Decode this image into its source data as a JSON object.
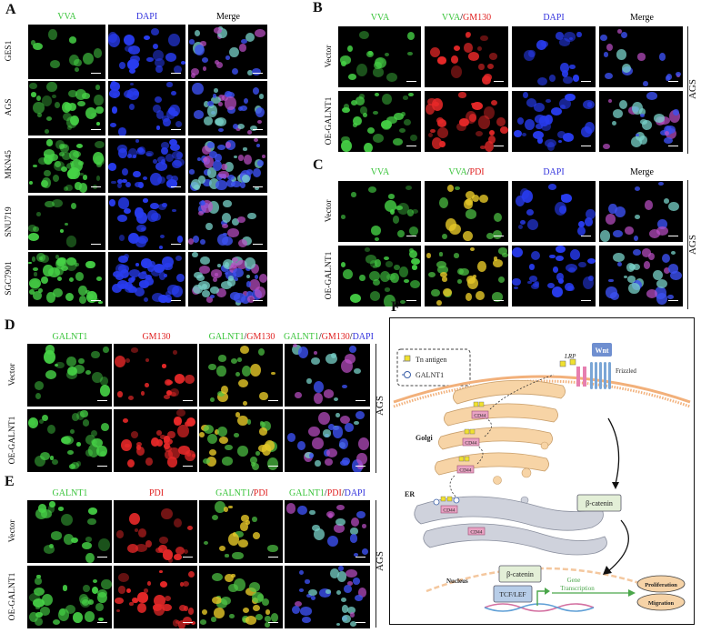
{
  "panels": {
    "A": {
      "letter": "A",
      "columns": [
        "VVA",
        "DAPI",
        "Merge"
      ],
      "rows": [
        "GES1",
        "AGS",
        "MKN45",
        "SNU719",
        "SGC7901"
      ]
    },
    "B": {
      "letter": "B",
      "columns": [
        "VVA",
        "VVA/GM130",
        "DAPI",
        "Merge"
      ],
      "col2_part1": "VVA",
      "col2_sep": "/",
      "col2_part2": "GM130",
      "rows": [
        "Vector",
        "OE-GALNT1"
      ],
      "side_label": "AGS"
    },
    "C": {
      "letter": "C",
      "columns": [
        "VVA",
        "VVA/PDI",
        "DAPI",
        "Merge"
      ],
      "col2_part1": "VVA",
      "col2_sep": "/",
      "col2_part2": "PDI",
      "rows": [
        "Vector",
        "OE-GALNT1"
      ],
      "side_label": "AGS"
    },
    "D": {
      "letter": "D",
      "col1": "GALNT1",
      "col2": "GM130",
      "col3_part1": "GALNT1",
      "col3_part2": "GM130",
      "col4_part1": "GALNT1",
      "col4_part2": "GM130",
      "col4_part3": "DAPI",
      "sep": "/",
      "rows": [
        "Vector",
        "OE-GALNT1"
      ],
      "side_label": "AGS"
    },
    "E": {
      "letter": "E",
      "col1": "GALNT1",
      "col2": "PDI",
      "col3_part1": "GALNT1",
      "col3_part2": "PDI",
      "col4_part1": "GALNT1",
      "col4_part2": "PDI",
      "col4_part3": "DAPI",
      "sep": "/",
      "rows": [
        "Vector",
        "OE-GALNT1"
      ],
      "side_label": "AGS"
    },
    "F": {
      "letter": "F",
      "legend_tn": "Tn antigen",
      "legend_galnt1": "GALNT1",
      "lrp": "LRP",
      "wnt": "Wnt",
      "frizzled": "Frizzled",
      "golgi": "Golgi",
      "er": "ER",
      "cd44": "CD44",
      "beta_catenin": "β-catenin",
      "nucleus": "Nucleus",
      "tcf_lef": "TCF/LEF",
      "gene_line1": "Gene",
      "gene_line2": "Transcription",
      "proliferation": "Proliferation",
      "migration": "Migration"
    }
  },
  "colors": {
    "vva_green": "#39c43a",
    "dapi_blue": "#3333dd",
    "gm130_red": "#e02020",
    "membrane_orange": "#f2b07a",
    "golgi_fill": "#f7d4a6",
    "er_fill": "#cfd2dc",
    "cd44_pink": "#e9a3c3"
  }
}
